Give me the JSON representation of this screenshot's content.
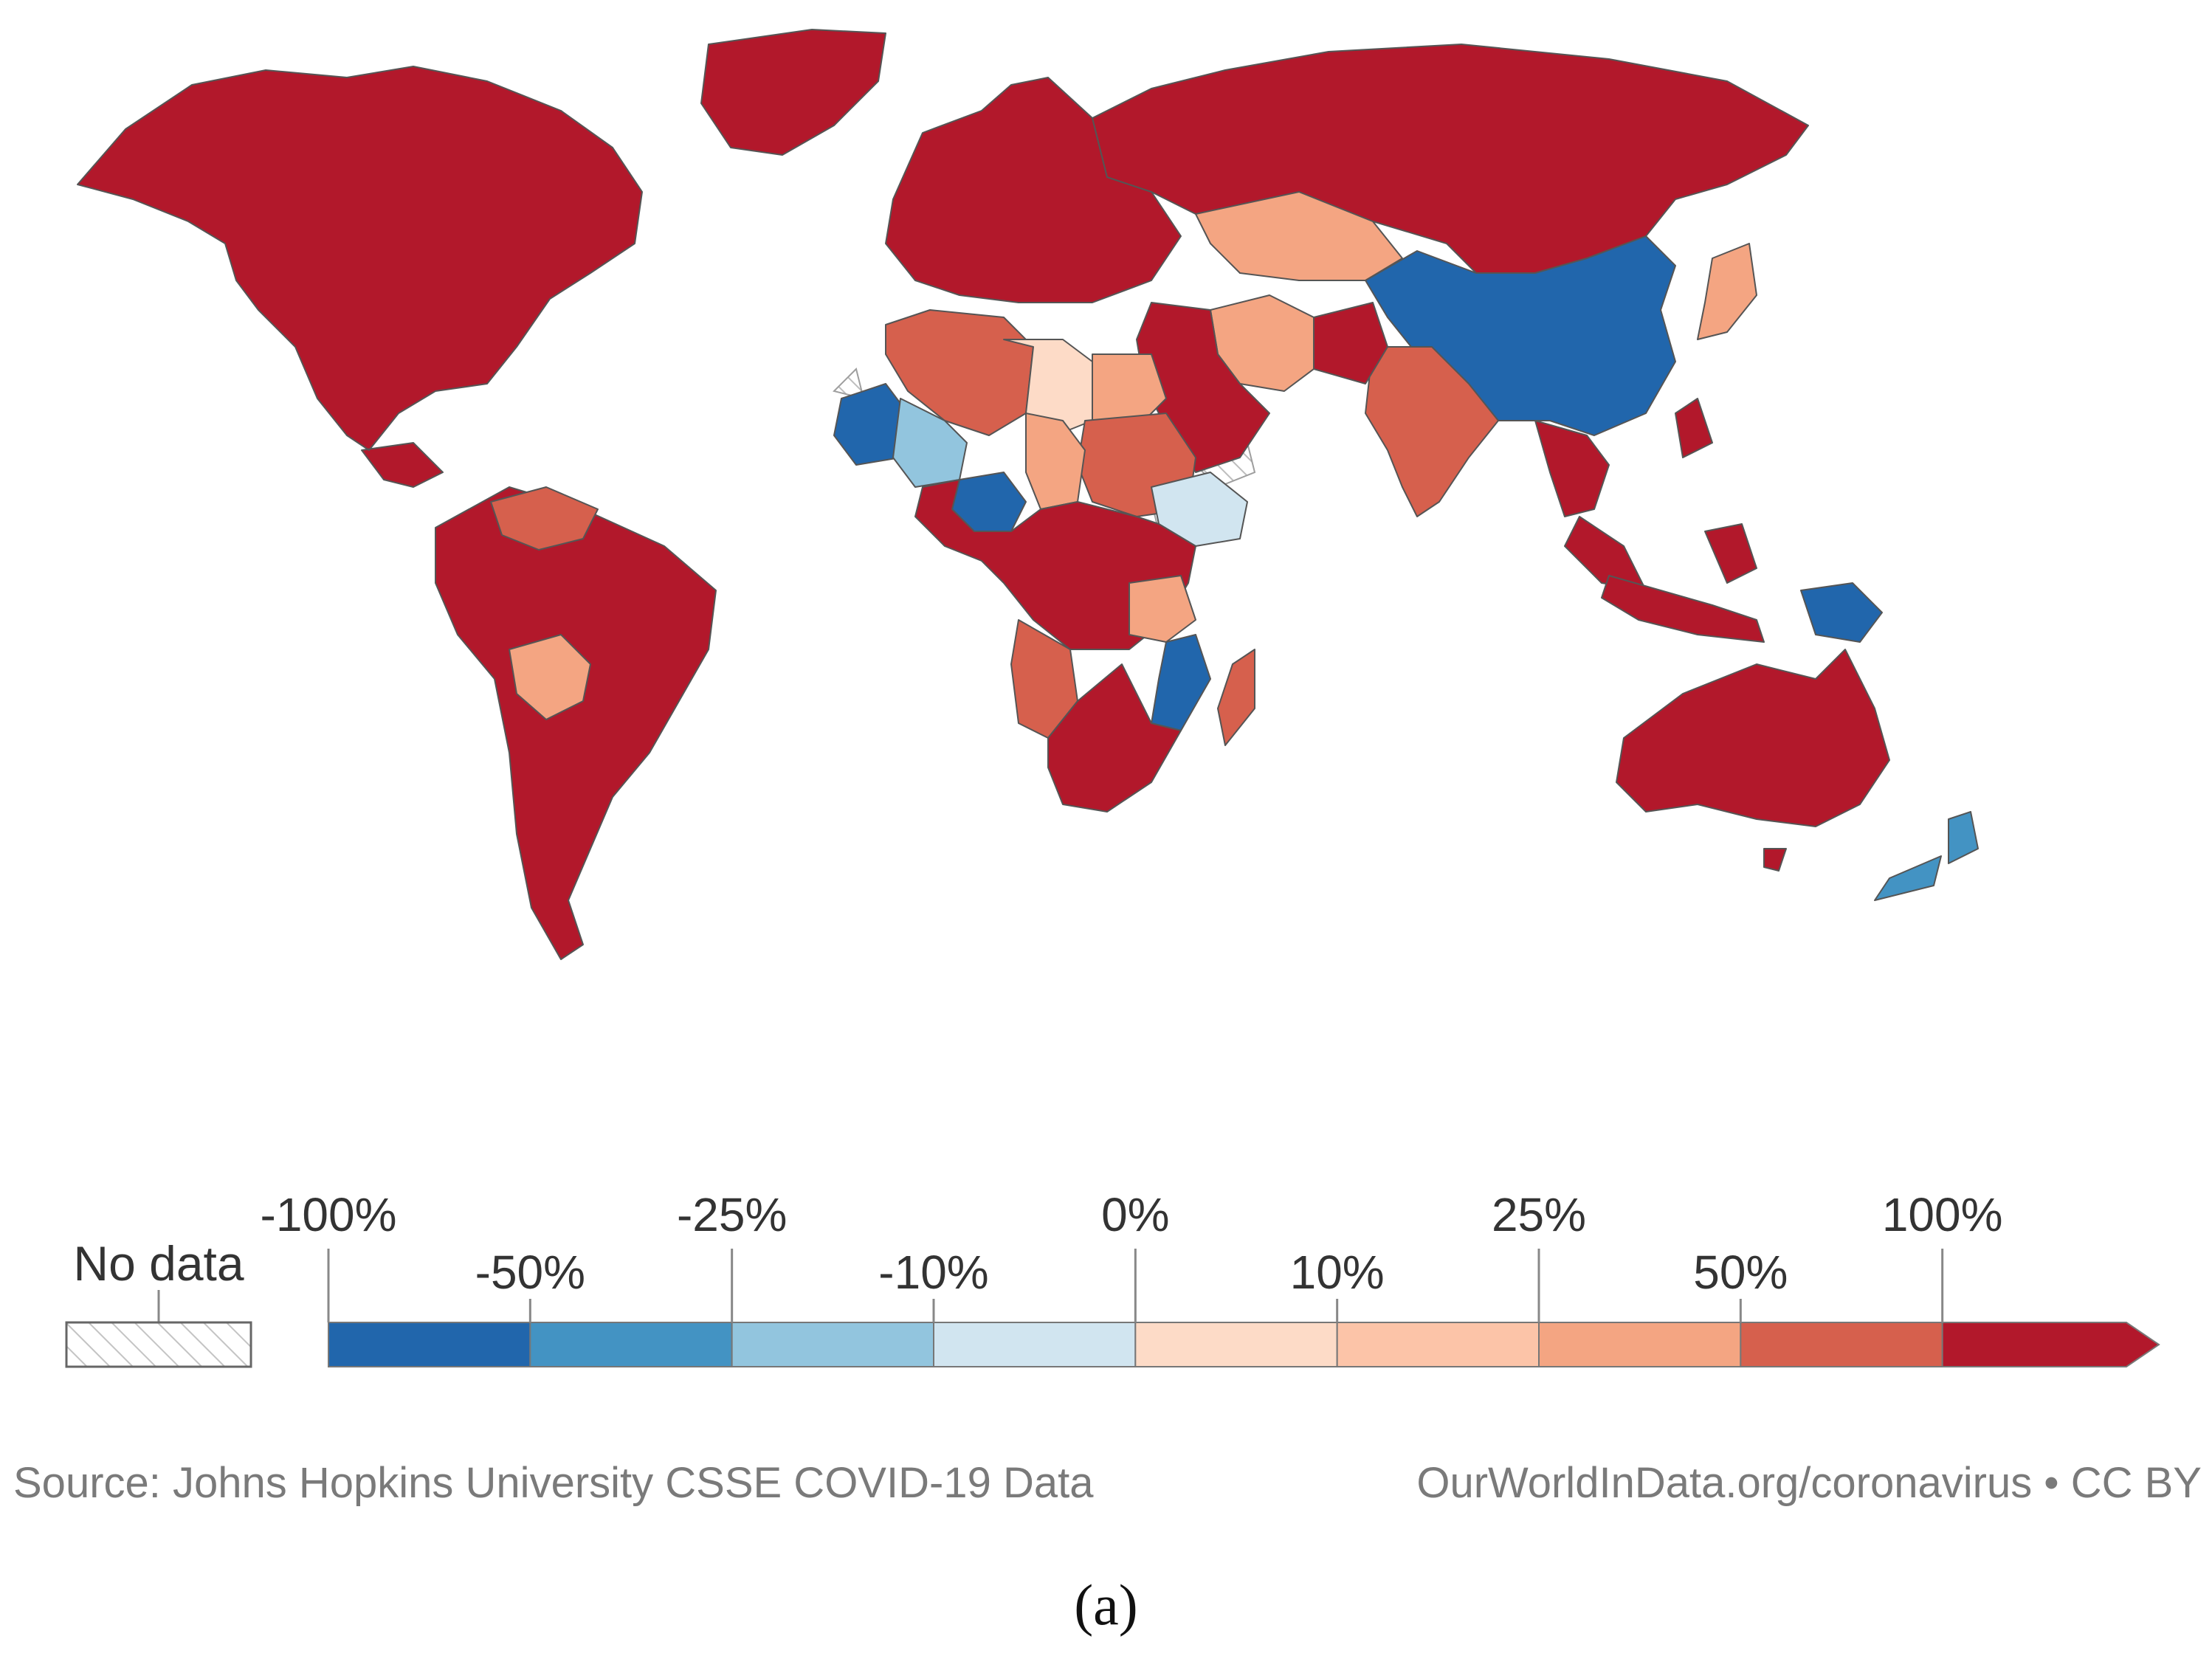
{
  "map": {
    "colors": {
      "bin_neg_100_neg_50": "#2166ac",
      "bin_neg_50_neg_25": "#4393c3",
      "bin_neg_25_neg_10": "#92c5de",
      "bin_neg_10_0": "#d1e5f0",
      "bin_0_10": "#fddbc7",
      "bin_10_25": "#fcc4a8",
      "bin_25_50": "#f4a582",
      "bin_50_100": "#d6604d",
      "bin_100_plus": "#b2182b",
      "no_data": "#ffffff",
      "border": "#555555"
    },
    "regions": [
      {
        "name": "north-america",
        "bin": "bin_100_plus"
      },
      {
        "name": "greenland",
        "bin": "bin_100_plus"
      },
      {
        "name": "south-america",
        "bin": "bin_100_plus"
      },
      {
        "name": "bolivia",
        "bin": "bin_25_50"
      },
      {
        "name": "venezuela",
        "bin": "bin_50_100"
      },
      {
        "name": "europe",
        "bin": "bin_100_plus"
      },
      {
        "name": "russia",
        "bin": "bin_100_plus"
      },
      {
        "name": "kazakhstan",
        "bin": "bin_25_50"
      },
      {
        "name": "china",
        "bin": "bin_neg_100_neg_50"
      },
      {
        "name": "india",
        "bin": "bin_50_100"
      },
      {
        "name": "iran",
        "bin": "bin_25_50"
      },
      {
        "name": "middle-east",
        "bin": "bin_100_plus"
      },
      {
        "name": "algeria",
        "bin": "bin_50_100"
      },
      {
        "name": "libya",
        "bin": "bin_0_10"
      },
      {
        "name": "egypt",
        "bin": "bin_25_50"
      },
      {
        "name": "sudan",
        "bin": "bin_50_100"
      },
      {
        "name": "mauritania",
        "bin": "bin_neg_100_neg_50"
      },
      {
        "name": "mali",
        "bin": "bin_neg_25_neg_10"
      },
      {
        "name": "chad",
        "bin": "bin_25_50"
      },
      {
        "name": "ethiopia",
        "bin": "bin_neg_10_0"
      },
      {
        "name": "nigeria",
        "bin": "bin_neg_100_neg_50"
      },
      {
        "name": "central-africa",
        "bin": "bin_100_plus"
      },
      {
        "name": "angola",
        "bin": "bin_50_100"
      },
      {
        "name": "tanzania",
        "bin": "bin_25_50"
      },
      {
        "name": "mozambique",
        "bin": "bin_neg_100_neg_50"
      },
      {
        "name": "southern-africa",
        "bin": "bin_100_plus"
      },
      {
        "name": "madagascar",
        "bin": "bin_50_100"
      },
      {
        "name": "southeast-asia",
        "bin": "bin_100_plus"
      },
      {
        "name": "japan",
        "bin": "bin_25_50"
      },
      {
        "name": "indonesia",
        "bin": "bin_100_plus"
      },
      {
        "name": "papua-new-guinea",
        "bin": "bin_neg_100_neg_50"
      },
      {
        "name": "australia",
        "bin": "bin_100_plus"
      },
      {
        "name": "new-zealand",
        "bin": "bin_neg_50_neg_25"
      }
    ]
  },
  "legend": {
    "no_data_label": "No data",
    "upper_ticks": [
      "-100%",
      "-25%",
      "0%",
      "25%",
      "100%"
    ],
    "lower_ticks": [
      "-50%",
      "-10%",
      "10%",
      "50%"
    ],
    "bins": [
      "bin_neg_100_neg_50",
      "bin_neg_50_neg_25",
      "bin_neg_25_neg_10",
      "bin_neg_10_0",
      "bin_0_10",
      "bin_10_25",
      "bin_25_50",
      "bin_50_100",
      "bin_100_plus"
    ]
  },
  "footer": {
    "source": "Source: Johns Hopkins University CSSE COVID-19 Data",
    "credit": "OurWorldInData.org/coronavirus • CC BY"
  },
  "caption": "(a)"
}
